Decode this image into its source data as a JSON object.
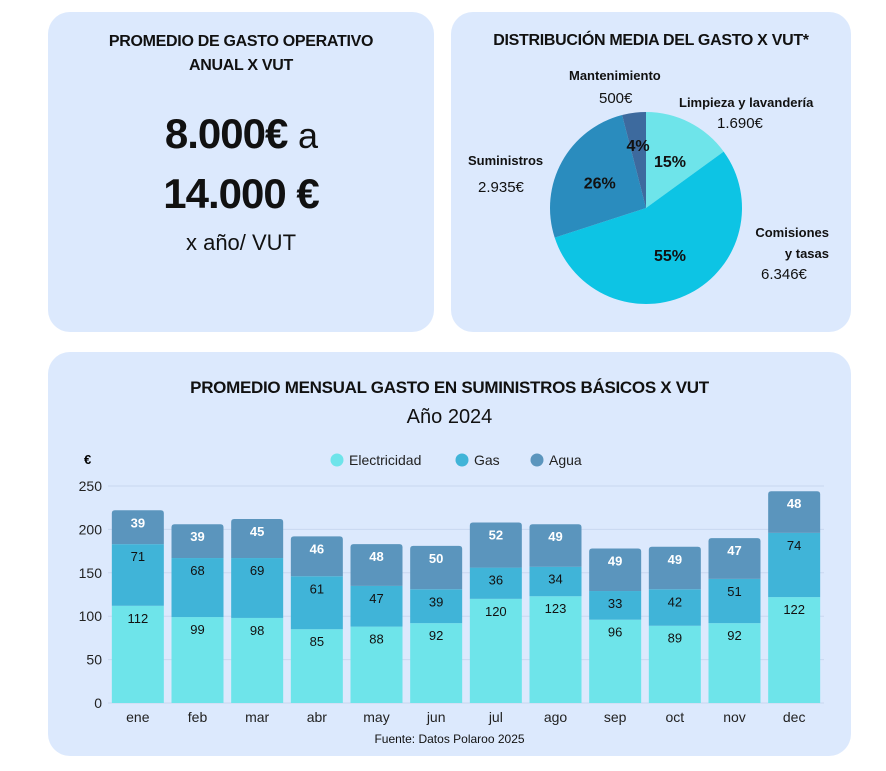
{
  "avg_card": {
    "title": "PROMEDIO DE GASTO OPERATIVO ANUAL X VUT",
    "low": "8.000€",
    "connector": "a",
    "high": "14.000 €",
    "unit": "x año/ VUT"
  },
  "distribution": {
    "title": "DISTRIBUCIÓN MEDIA DEL GASTO X VUT*",
    "chart_data": {
      "type": "pie",
      "title": "DISTRIBUCIÓN MEDIA DEL GASTO X VUT*",
      "slices": [
        {
          "label": "Limpieza y lavandería",
          "percent": "15%",
          "share": 15,
          "amount": "1.690€",
          "color": "#6ee4ea"
        },
        {
          "label": "Comisiones y tasas",
          "percent": "55%",
          "share": 55,
          "amount": "6.346€",
          "color": "#0dc4e4"
        },
        {
          "label": "Suministros",
          "percent": "26%",
          "share": 26,
          "amount": "2.935€",
          "color": "#2a8cbe"
        },
        {
          "label": "Mantenimiento",
          "percent": "4%",
          "share": 4,
          "amount": "500€",
          "color": "#3d6a9e"
        }
      ]
    }
  },
  "monthly": {
    "title": "PROMEDIO MENSUAL GASTO EN SUMINISTROS BÁSICOS X VUT",
    "subtitle": "Año 2024",
    "source": "Fuente: Datos Polaroo 2025",
    "chart_data": {
      "type": "bar",
      "stacked": true,
      "ylabel": "€",
      "ylim": [
        0,
        250
      ],
      "yticks": [
        0,
        50,
        100,
        150,
        200,
        250
      ],
      "grid": true,
      "legend_position": "top",
      "categories": [
        "ene",
        "feb",
        "mar",
        "abr",
        "may",
        "jun",
        "jul",
        "ago",
        "sep",
        "oct",
        "nov",
        "dec"
      ],
      "series": [
        {
          "name": "Electricidad",
          "color": "#6ee4ea",
          "values": [
            112,
            99,
            98,
            85,
            88,
            92,
            120,
            123,
            96,
            89,
            92,
            122
          ]
        },
        {
          "name": "Gas",
          "color": "#40b4d8",
          "values": [
            71,
            68,
            69,
            61,
            47,
            39,
            36,
            34,
            33,
            42,
            51,
            74
          ]
        },
        {
          "name": "Agua",
          "color": "#5b95bd",
          "values": [
            39,
            39,
            45,
            46,
            48,
            50,
            52,
            49,
            49,
            49,
            47,
            48
          ]
        }
      ]
    }
  }
}
